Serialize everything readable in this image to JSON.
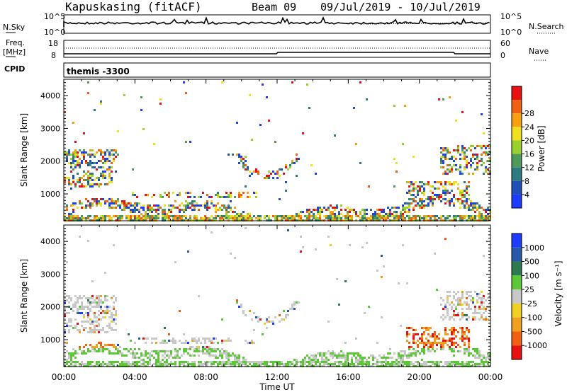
{
  "header": {
    "station": "Kapuskasing (fitACF)",
    "beam": "Beam 09",
    "date_range": "09/Jul/2019 - 10/Jul/2019"
  },
  "noise_panel": {
    "left_label": "N.Sky",
    "right_label": "N.Search",
    "tick_top": "10^5",
    "tick_bottom": "10^0",
    "right_tick_top": "10^5",
    "right_tick_bottom": "10^0"
  },
  "freq_panel": {
    "left_label_1": "Freq.",
    "left_label_2": "[MHz]",
    "tick_top": "18",
    "tick_bottom": "8",
    "right_label": "Nave",
    "right_tick_top": "60",
    "right_tick_bottom": "0"
  },
  "cpid": {
    "label": "CPID",
    "value": "themis -3300"
  },
  "chart_data": [
    {
      "type": "heatmap",
      "name": "power",
      "ylabel": "Slant Range [km]",
      "yticks": [
        "1000",
        "2000",
        "3000",
        "4000"
      ],
      "ylim": [
        180,
        4500
      ],
      "colorbar_label": "Power [dB]",
      "colorbar_ticks": [
        "4",
        "8",
        "12",
        "16",
        "20",
        "24",
        "28"
      ],
      "colors": [
        "#1e3cff",
        "#1f4fb8",
        "#2e7a82",
        "#4f9a5a",
        "#9bd12e",
        "#f0e020",
        "#f8a010",
        "#f06010",
        "#e81010"
      ]
    },
    {
      "type": "heatmap",
      "name": "velocity",
      "ylabel": "Slant Range [km]",
      "yticks": [
        "1000",
        "2000",
        "3000",
        "4000"
      ],
      "ylim": [
        180,
        4500
      ],
      "colorbar_label": "Velocity [m s⁻¹]",
      "colorbar_ticks": [
        "1000",
        "500",
        "100",
        "25",
        "-25",
        "-100",
        "-500",
        "-1000"
      ],
      "colors": [
        "#1e3cff",
        "#2a58a8",
        "#2e7a50",
        "#5cc838",
        "#c8c8c8",
        "#f0d020",
        "#f0a020",
        "#f06010",
        "#e81010"
      ]
    }
  ],
  "xaxis": {
    "label": "Time UT",
    "ticks": [
      "00:00",
      "04:00",
      "08:00",
      "12:00",
      "16:00",
      "20:00",
      "00:00"
    ]
  }
}
